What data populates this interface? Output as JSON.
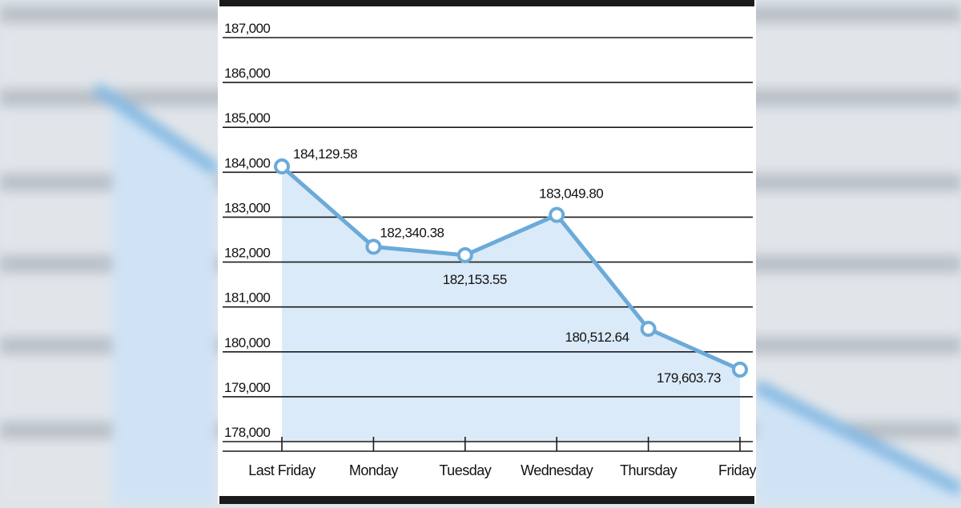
{
  "chart_data": {
    "type": "line",
    "title": "",
    "xlabel": "",
    "ylabel": "",
    "categories": [
      "Last Friday",
      "Monday",
      "Tuesday",
      "Wednesday",
      "Thursday",
      "Friday"
    ],
    "series": [
      {
        "values": [
          184129.58,
          182340.38,
          182153.55,
          183049.8,
          180512.64,
          179603.73
        ],
        "labels": [
          "184,129.58",
          "182,340.38",
          "182,153.55",
          "183,049.80",
          "180,512.64",
          "179,603.73"
        ]
      }
    ],
    "ylim": [
      178000,
      187000
    ],
    "yticks": [
      178000,
      179000,
      180000,
      181000,
      182000,
      183000,
      184000,
      185000,
      186000,
      187000
    ],
    "ytick_labels": [
      "178,000",
      "179,000",
      "180,000",
      "181,000",
      "182,000",
      "183,000",
      "184,000",
      "185,000",
      "186,000",
      "187,000"
    ],
    "grid": true,
    "area_fill": true,
    "colors": {
      "line": "#6baad9",
      "marker_fill": "#ffffff",
      "area": "#dbeaf8",
      "grid": "#1a1a1a",
      "frame": "#1a1a1a",
      "background": "#dfe3e8"
    }
  }
}
